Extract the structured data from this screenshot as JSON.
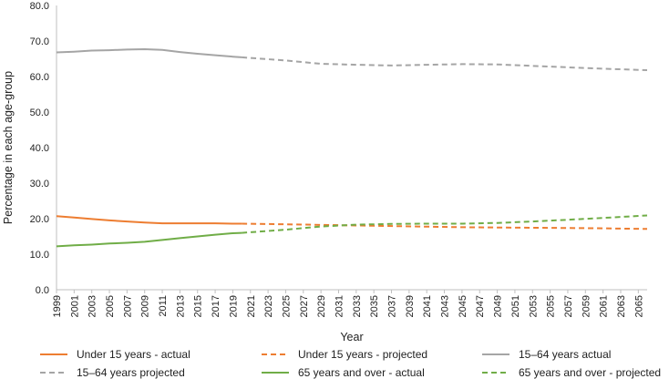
{
  "chart_data": {
    "type": "line",
    "title": "",
    "xlabel": "Year",
    "ylabel": "Percentage in each age-group",
    "ylim": [
      0,
      80
    ],
    "yticks": [
      "0.0",
      "10.0",
      "20.0",
      "30.0",
      "40.0",
      "50.0",
      "60.0",
      "70.0",
      "80.0"
    ],
    "xlim": [
      1999,
      2066
    ],
    "xticks": [
      "1999",
      "2001",
      "2003",
      "2005",
      "2007",
      "2009",
      "2011",
      "2013",
      "2015",
      "2017",
      "2019",
      "2021",
      "2023",
      "2025",
      "2027",
      "2029",
      "2031",
      "2033",
      "2035",
      "2037",
      "2039",
      "2041",
      "2043",
      "2045",
      "2047",
      "2049",
      "2051",
      "2053",
      "2055",
      "2057",
      "2059",
      "2061",
      "2063",
      "2065"
    ],
    "grid": false,
    "legend_position": "bottom",
    "series": [
      {
        "name": "Under 15 years - actual",
        "color": "#ED7D31",
        "style": "solid",
        "x": [
          1999,
          2001,
          2003,
          2005,
          2007,
          2009,
          2011,
          2013,
          2015,
          2017,
          2019,
          2020
        ],
        "y": [
          20.7,
          20.3,
          19.9,
          19.5,
          19.2,
          18.9,
          18.7,
          18.7,
          18.7,
          18.7,
          18.6,
          18.6
        ]
      },
      {
        "name": "Under 15 years - projected",
        "color": "#ED7D31",
        "style": "dashed",
        "x": [
          2020,
          2025,
          2030,
          2035,
          2040,
          2045,
          2050,
          2055,
          2060,
          2066
        ],
        "y": [
          18.6,
          18.4,
          18.2,
          18.0,
          17.8,
          17.6,
          17.5,
          17.4,
          17.3,
          17.1
        ]
      },
      {
        "name": "15–64 years actual",
        "color": "#A5A5A5",
        "style": "solid",
        "x": [
          1999,
          2001,
          2003,
          2005,
          2007,
          2009,
          2011,
          2013,
          2015,
          2017,
          2019,
          2020
        ],
        "y": [
          66.8,
          67.0,
          67.3,
          67.4,
          67.6,
          67.7,
          67.5,
          66.9,
          66.4,
          66.0,
          65.6,
          65.4
        ]
      },
      {
        "name": "15–64 years projected",
        "color": "#A5A5A5",
        "style": "dashed",
        "x": [
          2020,
          2025,
          2029,
          2033,
          2037,
          2041,
          2045,
          2049,
          2053,
          2057,
          2061,
          2066
        ],
        "y": [
          65.4,
          64.5,
          63.6,
          63.3,
          63.1,
          63.3,
          63.5,
          63.4,
          63.0,
          62.6,
          62.2,
          61.8
        ]
      },
      {
        "name": "65 years and over - actual",
        "color": "#70AD47",
        "style": "solid",
        "x": [
          1999,
          2001,
          2003,
          2005,
          2007,
          2009,
          2011,
          2013,
          2015,
          2017,
          2019,
          2020
        ],
        "y": [
          12.2,
          12.5,
          12.7,
          13.0,
          13.2,
          13.5,
          14.0,
          14.5,
          15.0,
          15.5,
          15.9,
          16.0
        ]
      },
      {
        "name": "65 years and over - projected",
        "color": "#70AD47",
        "style": "dashed",
        "x": [
          2020,
          2025,
          2029,
          2033,
          2037,
          2041,
          2045,
          2049,
          2053,
          2057,
          2061,
          2066
        ],
        "y": [
          16.0,
          16.9,
          17.8,
          18.3,
          18.5,
          18.6,
          18.6,
          18.8,
          19.2,
          19.7,
          20.2,
          20.9
        ]
      }
    ]
  }
}
